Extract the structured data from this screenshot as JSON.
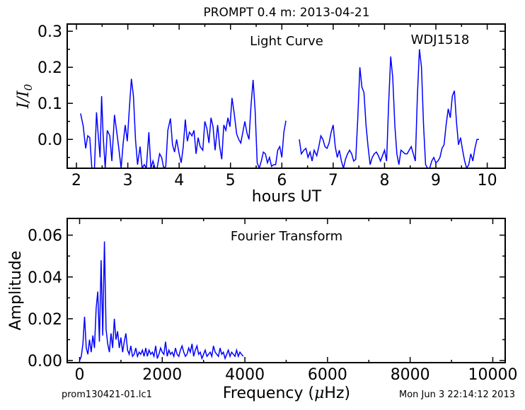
{
  "figure": {
    "title": "PROMPT 0.4 m:  2013-04-21",
    "footer_left": "prom130421-01.lc1",
    "footer_right": "Mon Jun  3 22:14:12 2013"
  },
  "chart_data": [
    {
      "type": "line",
      "panel": "light-curve",
      "annotation": "Light Curve",
      "object_label": "WDJ1518",
      "xlabel": "hours UT",
      "ylabel_italic_parts": [
        "I",
        "/",
        "I",
        "0"
      ],
      "xlim": [
        1.82,
        10.35
      ],
      "ylim": [
        -0.08,
        0.32
      ],
      "xticks": [
        2,
        3,
        4,
        5,
        6,
        7,
        8,
        9,
        10
      ],
      "yticks": [
        0.0,
        0.1,
        0.2,
        0.3
      ],
      "ytick_labels": [
        "0.0",
        "0.1",
        "0.2",
        "0.3"
      ],
      "color": "#0000ff",
      "segments": [
        [
          [
            2.08,
            0.072
          ],
          [
            2.13,
            0.038
          ],
          [
            2.18,
            -0.025
          ],
          [
            2.22,
            0.01
          ],
          [
            2.26,
            0.005
          ],
          [
            2.3,
            -0.08
          ],
          [
            2.35,
            -0.08
          ],
          [
            2.39,
            0.075
          ],
          [
            2.42,
            0.02
          ],
          [
            2.46,
            -0.05
          ],
          [
            2.49,
            0.12
          ],
          [
            2.52,
            0.01
          ],
          [
            2.56,
            -0.08
          ],
          [
            2.6,
            0.025
          ],
          [
            2.65,
            0.01
          ],
          [
            2.69,
            -0.06
          ],
          [
            2.74,
            0.068
          ],
          [
            2.78,
            0.025
          ],
          [
            2.82,
            -0.02
          ],
          [
            2.87,
            -0.08
          ],
          [
            2.91,
            -0.01
          ],
          [
            2.95,
            0.04
          ],
          [
            2.99,
            -0.005
          ],
          [
            3.03,
            0.085
          ],
          [
            3.07,
            0.168
          ],
          [
            3.11,
            0.12
          ],
          [
            3.15,
            0.0
          ],
          [
            3.19,
            -0.07
          ],
          [
            3.24,
            -0.02
          ],
          [
            3.28,
            -0.08
          ],
          [
            3.32,
            -0.07
          ],
          [
            3.36,
            -0.08
          ],
          [
            3.41,
            0.02
          ],
          [
            3.45,
            -0.08
          ],
          [
            3.49,
            -0.06
          ],
          [
            3.53,
            -0.08
          ],
          [
            3.57,
            -0.08
          ],
          [
            3.62,
            -0.04
          ],
          [
            3.66,
            -0.05
          ],
          [
            3.7,
            -0.08
          ],
          [
            3.74,
            -0.075
          ],
          [
            3.78,
            0.025
          ],
          [
            3.83,
            0.058
          ],
          [
            3.87,
            -0.015
          ],
          [
            3.91,
            -0.035
          ],
          [
            3.95,
            0.0
          ],
          [
            4.0,
            -0.04
          ],
          [
            4.04,
            -0.065
          ],
          [
            4.08,
            -0.02
          ],
          [
            4.12,
            0.055
          ],
          [
            4.16,
            -0.005
          ],
          [
            4.2,
            0.02
          ],
          [
            4.25,
            0.01
          ],
          [
            4.29,
            0.025
          ],
          [
            4.33,
            -0.04
          ],
          [
            4.37,
            0.005
          ],
          [
            4.41,
            -0.02
          ],
          [
            4.46,
            -0.03
          ],
          [
            4.5,
            0.05
          ],
          [
            4.54,
            0.03
          ],
          [
            4.58,
            -0.01
          ],
          [
            4.62,
            0.06
          ],
          [
            4.66,
            0.035
          ],
          [
            4.7,
            -0.03
          ],
          [
            4.75,
            0.04
          ],
          [
            4.79,
            -0.02
          ],
          [
            4.83,
            -0.055
          ],
          [
            4.87,
            0.04
          ],
          [
            4.91,
            0.025
          ],
          [
            4.95,
            0.06
          ],
          [
            4.99,
            0.035
          ],
          [
            5.03,
            0.115
          ],
          [
            5.07,
            0.075
          ],
          [
            5.12,
            0.015
          ],
          [
            5.16,
            0.0
          ],
          [
            5.2,
            -0.01
          ],
          [
            5.24,
            0.02
          ],
          [
            5.28,
            0.05
          ],
          [
            5.32,
            0.018
          ],
          [
            5.36,
            0.0
          ],
          [
            5.4,
            0.095
          ],
          [
            5.44,
            0.165
          ],
          [
            5.48,
            0.08
          ],
          [
            5.52,
            -0.065
          ],
          [
            5.56,
            -0.08
          ],
          [
            5.6,
            -0.06
          ],
          [
            5.64,
            -0.035
          ],
          [
            5.68,
            -0.04
          ],
          [
            5.72,
            -0.065
          ],
          [
            5.76,
            -0.05
          ],
          [
            5.8,
            -0.075
          ],
          [
            5.84,
            -0.07
          ],
          [
            5.88,
            -0.07
          ],
          [
            5.92,
            -0.03
          ],
          [
            5.96,
            -0.02
          ],
          [
            6.0,
            -0.05
          ],
          [
            6.04,
            0.02
          ],
          [
            6.08,
            0.052
          ]
        ],
        [
          [
            6.34,
            0.0
          ],
          [
            6.38,
            -0.04
          ],
          [
            6.43,
            -0.03
          ],
          [
            6.47,
            -0.025
          ],
          [
            6.51,
            -0.05
          ],
          [
            6.55,
            -0.035
          ],
          [
            6.59,
            -0.06
          ],
          [
            6.63,
            -0.03
          ],
          [
            6.68,
            -0.045
          ],
          [
            6.72,
            -0.02
          ],
          [
            6.76,
            0.01
          ],
          [
            6.8,
            0.0
          ],
          [
            6.84,
            -0.02
          ],
          [
            6.88,
            -0.025
          ],
          [
            6.92,
            -0.01
          ],
          [
            6.96,
            0.02
          ],
          [
            7.0,
            0.04
          ],
          [
            7.04,
            -0.02
          ],
          [
            7.08,
            -0.05
          ],
          [
            7.12,
            -0.03
          ],
          [
            7.16,
            -0.06
          ],
          [
            7.2,
            -0.08
          ],
          [
            7.24,
            -0.055
          ],
          [
            7.28,
            -0.04
          ],
          [
            7.32,
            -0.03
          ],
          [
            7.36,
            -0.04
          ],
          [
            7.4,
            -0.06
          ],
          [
            7.44,
            -0.055
          ],
          [
            7.48,
            0.06
          ],
          [
            7.52,
            0.2
          ],
          [
            7.56,
            0.145
          ],
          [
            7.6,
            0.13
          ],
          [
            7.64,
            0.04
          ],
          [
            7.68,
            -0.02
          ],
          [
            7.72,
            -0.07
          ],
          [
            7.76,
            -0.05
          ],
          [
            7.8,
            -0.04
          ],
          [
            7.84,
            -0.035
          ],
          [
            7.88,
            -0.045
          ],
          [
            7.92,
            -0.06
          ],
          [
            7.96,
            -0.045
          ],
          [
            8.0,
            -0.03
          ],
          [
            8.04,
            -0.06
          ],
          [
            8.08,
            0.1
          ],
          [
            8.12,
            0.23
          ],
          [
            8.16,
            0.17
          ],
          [
            8.2,
            0.04
          ],
          [
            8.24,
            -0.04
          ],
          [
            8.28,
            -0.07
          ],
          [
            8.32,
            -0.03
          ],
          [
            8.36,
            -0.035
          ],
          [
            8.4,
            -0.04
          ],
          [
            8.44,
            -0.04
          ],
          [
            8.48,
            -0.03
          ],
          [
            8.52,
            -0.02
          ],
          [
            8.56,
            -0.04
          ],
          [
            8.6,
            -0.06
          ],
          [
            8.64,
            0.12
          ],
          [
            8.68,
            0.25
          ],
          [
            8.72,
            0.2
          ],
          [
            8.76,
            0.04
          ],
          [
            8.8,
            -0.07
          ],
          [
            8.84,
            -0.08
          ],
          [
            8.88,
            -0.08
          ],
          [
            8.92,
            -0.06
          ],
          [
            8.96,
            -0.05
          ],
          [
            9.0,
            -0.065
          ],
          [
            9.04,
            -0.06
          ],
          [
            9.08,
            -0.05
          ],
          [
            9.12,
            -0.025
          ],
          [
            9.16,
            -0.015
          ],
          [
            9.2,
            0.04
          ],
          [
            9.24,
            0.085
          ],
          [
            9.28,
            0.06
          ],
          [
            9.32,
            0.12
          ],
          [
            9.36,
            0.135
          ],
          [
            9.4,
            0.05
          ],
          [
            9.44,
            -0.015
          ],
          [
            9.48,
            0.005
          ],
          [
            9.52,
            -0.03
          ],
          [
            9.56,
            -0.06
          ],
          [
            9.6,
            -0.08
          ],
          [
            9.64,
            -0.07
          ],
          [
            9.68,
            -0.04
          ],
          [
            9.72,
            -0.06
          ],
          [
            9.76,
            -0.025
          ],
          [
            9.8,
            0.0
          ],
          [
            9.84,
            0.0
          ]
        ]
      ]
    },
    {
      "type": "line",
      "panel": "fourier-transform",
      "annotation": "Fourier Transform",
      "xlabel": "Frequency (μHz)",
      "xlabel_parts": [
        "Frequency (",
        "μ",
        "Hz)"
      ],
      "ylabel": "Amplitude",
      "xlim": [
        -300,
        10300
      ],
      "ylim": [
        -0.001,
        0.068
      ],
      "xticks": [
        0,
        2000,
        4000,
        6000,
        8000,
        10000
      ],
      "yticks": [
        0.0,
        0.02,
        0.04,
        0.06
      ],
      "ytick_labels": [
        "0.00",
        "0.02",
        "0.04",
        "0.06"
      ],
      "color": "#0000ff",
      "x": [
        0,
        40,
        80,
        120,
        160,
        200,
        240,
        280,
        320,
        360,
        400,
        440,
        480,
        520,
        560,
        600,
        640,
        680,
        720,
        760,
        800,
        840,
        880,
        920,
        960,
        1000,
        1040,
        1080,
        1120,
        1160,
        1200,
        1240,
        1280,
        1320,
        1360,
        1400,
        1440,
        1480,
        1520,
        1560,
        1600,
        1640,
        1680,
        1720,
        1760,
        1800,
        1840,
        1880,
        1920,
        1960,
        2000,
        2040,
        2080,
        2120,
        2160,
        2200,
        2240,
        2280,
        2320,
        2360,
        2400,
        2440,
        2480,
        2520,
        2560,
        2600,
        2640,
        2680,
        2720,
        2760,
        2800,
        2840,
        2880,
        2920,
        2960,
        3000,
        3040,
        3080,
        3120,
        3160,
        3200,
        3240,
        3280,
        3320,
        3360,
        3400,
        3440,
        3480,
        3520,
        3560,
        3600,
        3640,
        3680,
        3720,
        3760,
        3800,
        3840,
        3880,
        3920,
        3960
      ],
      "values": [
        0.0,
        0.002,
        0.008,
        0.021,
        0.006,
        0.003,
        0.01,
        0.004,
        0.012,
        0.006,
        0.025,
        0.033,
        0.009,
        0.048,
        0.012,
        0.057,
        0.015,
        0.008,
        0.004,
        0.013,
        0.006,
        0.02,
        0.01,
        0.014,
        0.006,
        0.011,
        0.004,
        0.009,
        0.013,
        0.005,
        0.003,
        0.007,
        0.002,
        0.003,
        0.006,
        0.002,
        0.004,
        0.003,
        0.005,
        0.002,
        0.006,
        0.002,
        0.005,
        0.003,
        0.004,
        0.002,
        0.007,
        0.001,
        0.003,
        0.006,
        0.004,
        0.003,
        0.009,
        0.002,
        0.005,
        0.003,
        0.004,
        0.002,
        0.006,
        0.003,
        0.002,
        0.005,
        0.007,
        0.004,
        0.002,
        0.003,
        0.006,
        0.004,
        0.008,
        0.002,
        0.005,
        0.007,
        0.003,
        0.004,
        0.001,
        0.003,
        0.005,
        0.002,
        0.003,
        0.004,
        0.002,
        0.007,
        0.004,
        0.003,
        0.002,
        0.006,
        0.003,
        0.004,
        0.001,
        0.003,
        0.005,
        0.002,
        0.004,
        0.003,
        0.002,
        0.005,
        0.002,
        0.004,
        0.003,
        0.002
      ]
    }
  ]
}
